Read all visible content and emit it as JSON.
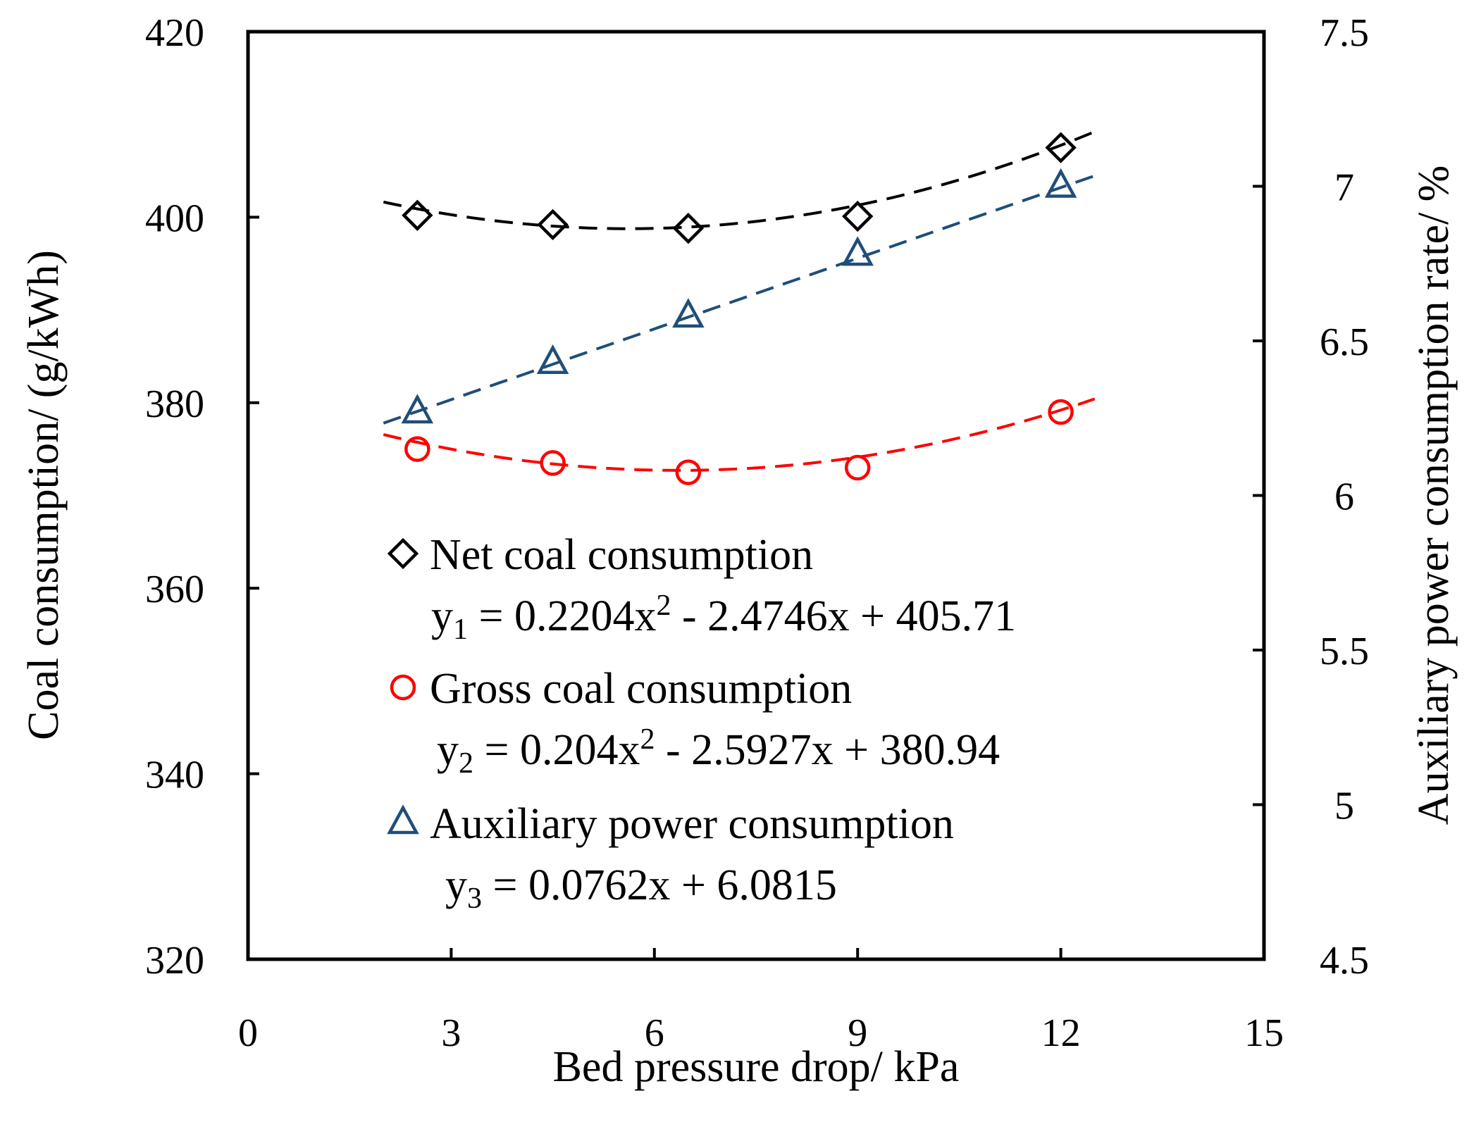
{
  "chart_data": {
    "type": "scatter",
    "title": "",
    "xlabel": "Bed pressure drop/ kPa",
    "ylabel_left": "Coal consumption/ (g/kWh)",
    "ylabel_right": "Auxiliary power consumption rate/ %",
    "xlim": [
      0,
      15
    ],
    "ylim_left": [
      320,
      420
    ],
    "ylim_right": [
      4.5,
      7.5
    ],
    "xticks": [
      "0",
      "3",
      "6",
      "9",
      "12",
      "15"
    ],
    "yticks_left": [
      "320",
      "340",
      "360",
      "380",
      "400",
      "420"
    ],
    "yticks_right": [
      "4.5",
      "5",
      "5.5",
      "6",
      "6.5",
      "7",
      "7.5"
    ],
    "grid": false,
    "legend_position": "center-left inside plot",
    "series": [
      {
        "name": "Net coal consumption",
        "axis": "left",
        "marker": "diamond",
        "color": "#000000",
        "x": [
          2.5,
          4.5,
          6.5,
          9.0,
          12.0
        ],
        "y": [
          400.2,
          399.2,
          398.8,
          400.1,
          407.5
        ],
        "fit_label": "y1 = 0.2204x2 - 2.4746x + 405.71",
        "fit_main": "y",
        "fit_sub": "1",
        "fit_mid": " = 0.2204x",
        "fit_sup": "2",
        "fit_tail": " - 2.4746x + 405.71",
        "fit_coeffs": [
          0.2204,
          -2.4746,
          405.71
        ]
      },
      {
        "name": "Gross coal consumption",
        "axis": "left",
        "marker": "circle",
        "color": "#ff0000",
        "x": [
          2.5,
          4.5,
          6.5,
          9.0,
          12.0
        ],
        "y": [
          375.0,
          373.5,
          372.5,
          373.0,
          379.0
        ],
        "fit_label": "y2 = 0.204x2 - 2.5927x + 380.94",
        "fit_main": "y",
        "fit_sub": "2",
        "fit_mid": " = 0.204x",
        "fit_sup": "2",
        "fit_tail": " - 2.5927x + 380.94",
        "fit_coeffs": [
          0.204,
          -2.5927,
          380.94
        ]
      },
      {
        "name": "Auxiliary power consumption",
        "axis": "right",
        "marker": "triangle",
        "color": "#1f4e79",
        "x": [
          2.5,
          4.5,
          6.5,
          9.0,
          12.0
        ],
        "y": [
          6.27,
          6.43,
          6.58,
          6.78,
          7.0
        ],
        "fit_label": "y3 = 0.0762x + 6.0815",
        "fit_main": "y",
        "fit_sub": "3",
        "fit_mid": " = 0.0762x + 6.0815",
        "fit_sup": "",
        "fit_tail": "",
        "fit_coeffs": [
          0,
          0.0762,
          6.0815
        ]
      }
    ],
    "fit_x_range": [
      2.0,
      12.5
    ]
  }
}
